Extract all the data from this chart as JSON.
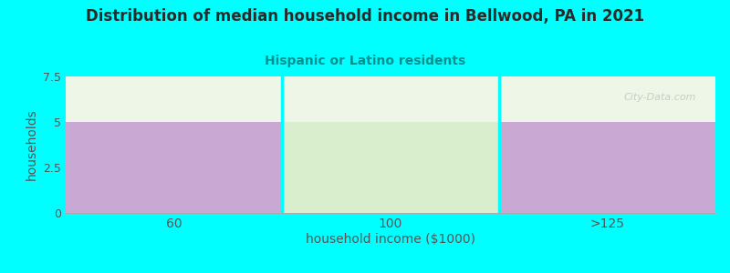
{
  "title": "Distribution of median household income in Bellwood, PA in 2021",
  "subtitle": "Hispanic or Latino residents",
  "xlabel": "household income ($1000)",
  "ylabel": "households",
  "categories": [
    "60",
    "100",
    ">125"
  ],
  "values": [
    5,
    5,
    5
  ],
  "bar_colors": [
    "#c9a8d4",
    "#d8eecc",
    "#c9a8d4"
  ],
  "ylim": [
    0,
    7.5
  ],
  "yticks": [
    0,
    2.5,
    5,
    7.5
  ],
  "background_color": "#00FFFF",
  "plot_bg_color": "#eef6e8",
  "title_color": "#2a2a2a",
  "subtitle_color": "#009090",
  "axis_label_color": "#555555",
  "tick_color": "#555555",
  "watermark": "City-Data.com",
  "separator_color": "#00FFFF",
  "bottom_line_color": "#aaaaaa"
}
